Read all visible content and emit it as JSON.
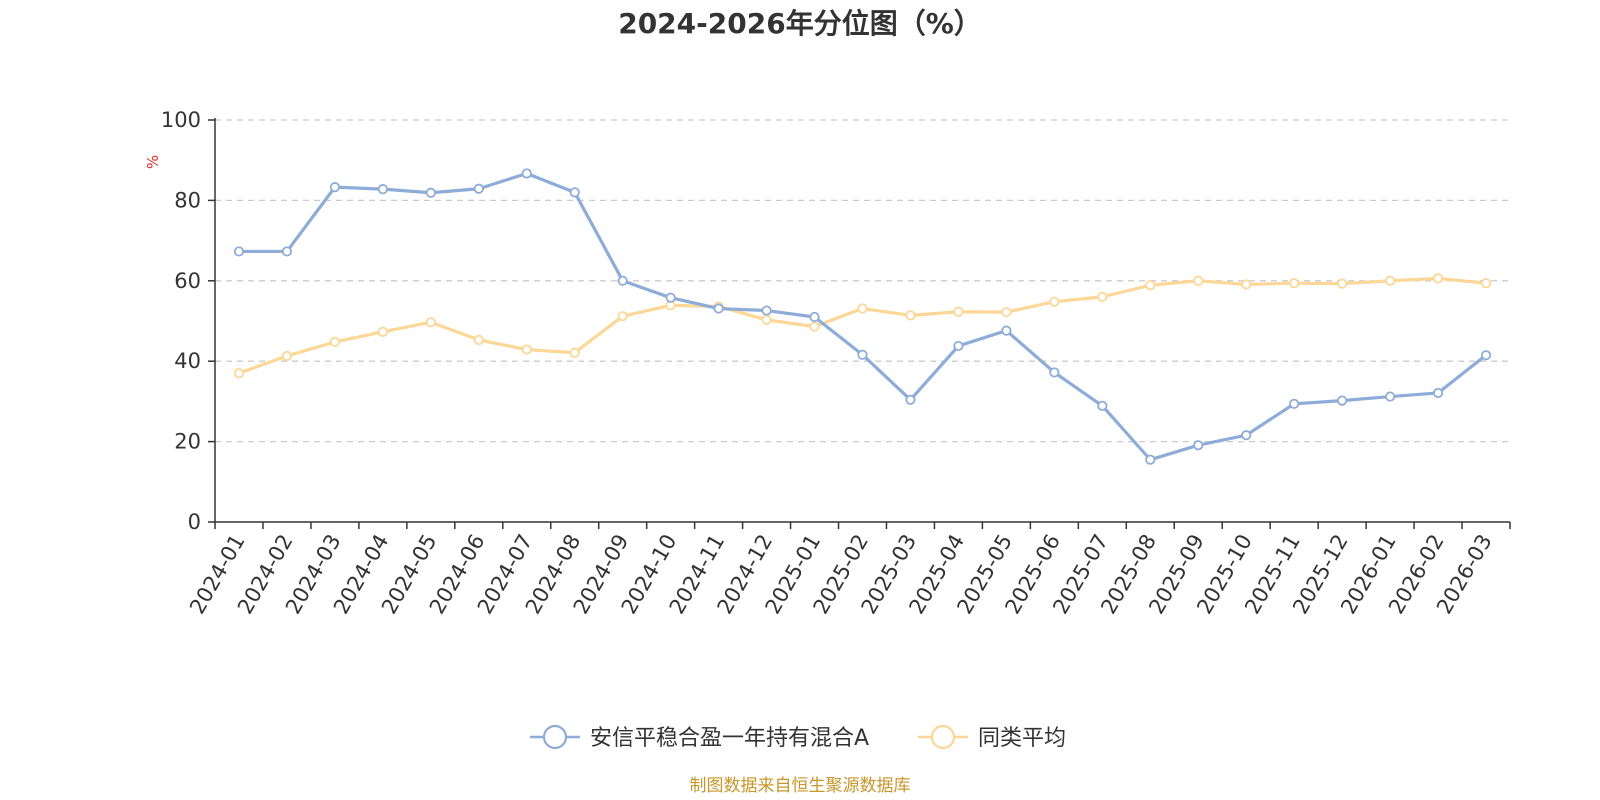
{
  "chart_data": {
    "type": "line",
    "title": "2024-2026年分位图（%）",
    "ylabel": "%",
    "ylim": [
      0,
      100
    ],
    "yticks": [
      0,
      20,
      40,
      60,
      80,
      100
    ],
    "grid": true,
    "legend_position": "bottom-center",
    "categories": [
      "2024-01",
      "2024-02",
      "2024-03",
      "2024-04",
      "2024-05",
      "2024-06",
      "2024-07",
      "2024-08",
      "2024-09",
      "2024-10",
      "2024-11",
      "2024-12",
      "2025-01",
      "2025-02",
      "2025-03",
      "2025-04",
      "2025-05",
      "2025-06",
      "2025-07",
      "2025-08",
      "2025-09",
      "2025-10",
      "2025-11",
      "2025-12",
      "2026-01",
      "2026-02",
      "2026-03"
    ],
    "series": [
      {
        "name": "安信平稳合盈一年持有混合A",
        "color": "#8eacd8",
        "values": [
          67.3,
          67.3,
          83.3,
          82.8,
          81.9,
          82.9,
          86.7,
          82.0,
          60.0,
          55.8,
          53.1,
          52.6,
          51.0,
          41.6,
          30.4,
          43.8,
          47.6,
          37.2,
          28.9,
          15.5,
          19.1,
          21.6,
          29.4,
          30.2,
          31.2,
          32.1,
          41.5
        ]
      },
      {
        "name": "同类平均",
        "color": "#fcd797",
        "values": [
          37.0,
          41.3,
          44.8,
          47.3,
          49.7,
          45.3,
          42.9,
          42.1,
          51.2,
          53.9,
          53.6,
          50.3,
          48.6,
          53.1,
          51.4,
          52.3,
          52.2,
          54.8,
          56.0,
          58.9,
          60.0,
          59.1,
          59.4,
          59.3,
          60.0,
          60.6,
          59.4
        ]
      }
    ],
    "source": "制图数据来自恒生聚源数据库",
    "colors": {
      "axis": "#333333",
      "grid": "#cccccc",
      "unit": "#e0302a",
      "source": "#c8962a",
      "text": "#333333"
    }
  }
}
